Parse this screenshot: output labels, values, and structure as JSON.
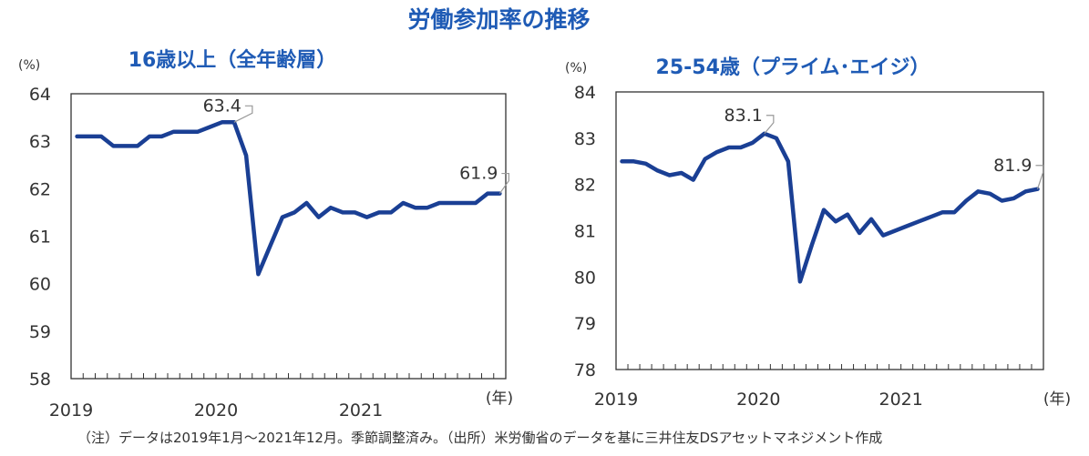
{
  "main_title": "労働参加率の推移",
  "footnote": "（注）データは2019年1月～2021年12月。季節調整済み。（出所）米労働省のデータを基に三井住友DSアセットマネジメント作成",
  "colors": {
    "line": "#1a3f94",
    "title": "#1f5bb5",
    "axis": "#333333",
    "callout": "#999999"
  },
  "chart_data": [
    {
      "type": "line",
      "title": "16歳以上（全年齢層）",
      "ylabel": "(%)",
      "xlabel": "(年)",
      "ylim": [
        58,
        64
      ],
      "yticks": [
        "58",
        "59",
        "60",
        "61",
        "62",
        "63",
        "64"
      ],
      "xticks": [
        "2019",
        "2020",
        "2021"
      ],
      "x_start": "2019-01",
      "x_months": 36,
      "series": [
        {
          "name": "16歳以上（全年齢層）",
          "values": [
            63.1,
            63.1,
            63.1,
            62.9,
            62.9,
            62.9,
            63.1,
            63.1,
            63.2,
            63.2,
            63.2,
            63.3,
            63.4,
            63.4,
            62.7,
            60.2,
            60.8,
            61.4,
            61.5,
            61.7,
            61.4,
            61.6,
            61.5,
            61.5,
            61.4,
            61.5,
            61.5,
            61.7,
            61.6,
            61.6,
            61.7,
            61.7,
            61.7,
            61.7,
            61.9,
            61.9
          ]
        }
      ],
      "annotations": [
        {
          "text": "63.4",
          "index": 13,
          "value": 63.4
        },
        {
          "text": "61.9",
          "index": 35,
          "value": 61.9
        }
      ]
    },
    {
      "type": "line",
      "title": "25-54歳（プライム･エイジ）",
      "ylabel": "(%)",
      "xlabel": "(年)",
      "ylim": [
        78,
        84
      ],
      "yticks": [
        "78",
        "79",
        "80",
        "81",
        "82",
        "83",
        "84"
      ],
      "xticks": [
        "2019",
        "2020",
        "2021"
      ],
      "x_start": "2019-01",
      "x_months": 36,
      "series": [
        {
          "name": "25-54歳（プライム･エイジ）",
          "values": [
            82.5,
            82.5,
            82.45,
            82.3,
            82.2,
            82.25,
            82.1,
            82.55,
            82.7,
            82.8,
            82.8,
            82.9,
            83.1,
            83.0,
            82.5,
            79.9,
            80.7,
            81.45,
            81.2,
            81.35,
            80.95,
            81.25,
            80.9,
            81.0,
            81.1,
            81.2,
            81.3,
            81.4,
            81.4,
            81.65,
            81.85,
            81.8,
            81.65,
            81.7,
            81.85,
            81.9
          ]
        }
      ],
      "annotations": [
        {
          "text": "83.1",
          "index": 12,
          "value": 83.1
        },
        {
          "text": "81.9",
          "index": 35,
          "value": 81.9
        }
      ]
    }
  ]
}
